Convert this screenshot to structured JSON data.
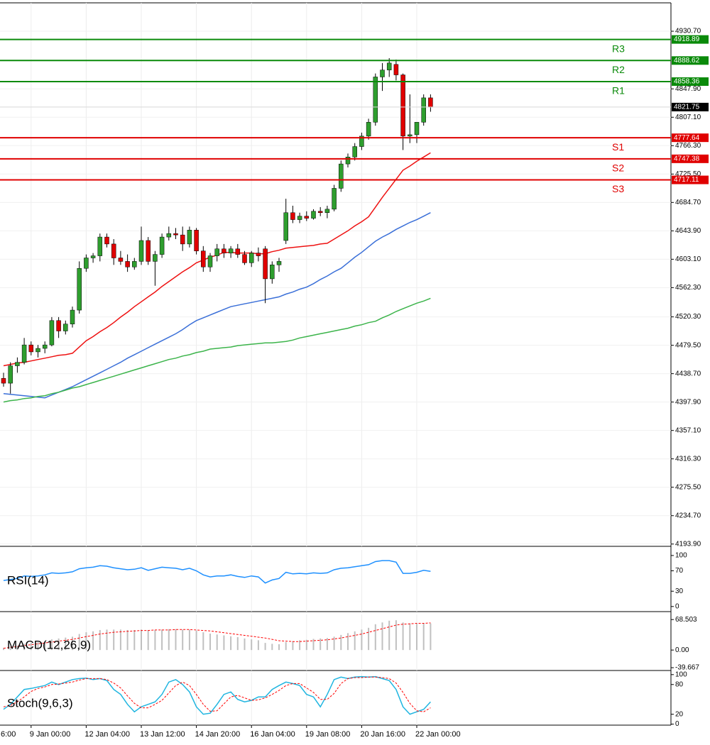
{
  "chart_data": [
    {
      "type": "candlestick",
      "categories": [
        null,
        null,
        null,
        null,
        "9 Jan 00:00",
        null,
        null,
        null,
        null,
        null,
        null,
        null,
        "12 Jan 04:00",
        null,
        null,
        null,
        null,
        null,
        null,
        null,
        "13 Jan 12:00",
        null,
        null,
        null,
        null,
        null,
        null,
        null,
        "14 Jan 20:00",
        null,
        null,
        null,
        null,
        null,
        null,
        null,
        "16 Jan 04:00",
        null,
        null,
        null,
        null,
        null,
        null,
        null,
        "19 Jan 08:00",
        null,
        null,
        null,
        null,
        null,
        null,
        null,
        "20 Jan 16:00",
        null,
        null,
        null,
        null,
        null,
        null,
        null,
        "22 Jan 00:00",
        null,
        null
      ],
      "clipped_time_label": "6:00",
      "open": [
        4432,
        4425,
        4450,
        4455,
        4480,
        4470,
        4475,
        4480,
        4515,
        4500,
        4510,
        4530,
        4590,
        4605,
        4608,
        4635,
        4625,
        4605,
        4600,
        4592,
        4600,
        4630,
        4600,
        4610,
        4635,
        4640,
        4638,
        4625,
        4645,
        4615,
        4592,
        4608,
        4618,
        4612,
        4618,
        4610,
        4598,
        4612,
        4618,
        4575,
        4595,
        4630,
        4670,
        4660,
        4665,
        4662,
        4672,
        4670,
        4675,
        4705,
        4740,
        4750,
        4765,
        4780,
        4800,
        4865,
        4875,
        4883,
        4868,
        4780,
        4782,
        4800,
        4835
      ],
      "high": [
        4440,
        4455,
        4462,
        4490,
        4485,
        4480,
        4485,
        4520,
        4520,
        4515,
        4535,
        4600,
        4610,
        4612,
        4640,
        4640,
        4632,
        4615,
        4610,
        4605,
        4650,
        4635,
        4615,
        4640,
        4650,
        4648,
        4650,
        4650,
        4648,
        4622,
        4612,
        4625,
        4625,
        4622,
        4625,
        4615,
        4615,
        4620,
        4622,
        4600,
        4605,
        4690,
        4680,
        4670,
        4672,
        4675,
        4678,
        4680,
        4710,
        4745,
        4755,
        4770,
        4785,
        4805,
        4870,
        4885,
        4892,
        4890,
        4870,
        4840,
        4800,
        4840,
        4840
      ],
      "low": [
        4420,
        4410,
        4440,
        4452,
        4465,
        4462,
        4468,
        4478,
        4490,
        4495,
        4505,
        4525,
        4585,
        4598,
        4600,
        4620,
        4595,
        4595,
        4585,
        4588,
        4595,
        4595,
        4565,
        4605,
        4630,
        4632,
        4615,
        4620,
        4610,
        4585,
        4585,
        4600,
        4605,
        4605,
        4605,
        4595,
        4592,
        4600,
        4540,
        4568,
        4585,
        4625,
        4655,
        4655,
        4658,
        4660,
        4665,
        4662,
        4672,
        4700,
        4735,
        4745,
        4760,
        4775,
        4795,
        4845,
        4865,
        4860,
        4760,
        4770,
        4770,
        4795,
        4815
      ],
      "close": [
        4425,
        4450,
        4455,
        4480,
        4470,
        4475,
        4480,
        4515,
        4500,
        4510,
        4530,
        4590,
        4605,
        4608,
        4635,
        4625,
        4605,
        4600,
        4592,
        4600,
        4630,
        4600,
        4610,
        4635,
        4640,
        4638,
        4625,
        4645,
        4615,
        4592,
        4608,
        4618,
        4612,
        4618,
        4610,
        4598,
        4612,
        4608,
        4575,
        4595,
        4600,
        4670,
        4660,
        4665,
        4662,
        4672,
        4670,
        4675,
        4705,
        4740,
        4750,
        4765,
        4780,
        4800,
        4865,
        4875,
        4885,
        4868,
        4780,
        4782,
        4800,
        4835,
        4821.75
      ],
      "up_color": "#2e9e2e",
      "down_color": "#e00000",
      "series": [
        {
          "color": "#ee1111",
          "values": [
            4450,
            4452,
            4454,
            4455,
            4457,
            4459,
            4461,
            4463,
            4465,
            4466,
            4468,
            4477,
            4486,
            4492,
            4499,
            4505,
            4512,
            4520,
            4527,
            4535,
            4542,
            4549,
            4556,
            4564,
            4571,
            4578,
            4585,
            4591,
            4598,
            4602,
            4606,
            4609,
            4613,
            4613,
            4612,
            4612,
            4612,
            4611,
            4611,
            4614,
            4616,
            4619,
            4620,
            4621,
            4622,
            4623,
            4625,
            4626,
            4632,
            4638,
            4644,
            4651,
            4657,
            4664,
            4678,
            4692,
            4705,
            4718,
            4731,
            4737,
            4744,
            4750,
            4756
          ]
        },
        {
          "color": "#3a6fd8",
          "values": [
            4410,
            4409,
            4408,
            4407,
            4406,
            4405,
            4404,
            4408,
            4412,
            4416,
            4420,
            4425,
            4430,
            4435,
            4440,
            4445,
            4450,
            4455,
            4461,
            4466,
            4471,
            4476,
            4481,
            4486,
            4491,
            4496,
            4502,
            4509,
            4515,
            4519,
            4523,
            4527,
            4531,
            4535,
            4537,
            4539,
            4541,
            4543,
            4545,
            4547,
            4549,
            4553,
            4556,
            4560,
            4563,
            4568,
            4574,
            4579,
            4585,
            4590,
            4598,
            4606,
            4613,
            4621,
            4629,
            4635,
            4640,
            4646,
            4651,
            4656,
            4660,
            4665,
            4670
          ]
        },
        {
          "color": "#3cb44b",
          "values": [
            4398,
            4400,
            4401,
            4403,
            4404,
            4406,
            4407,
            4410,
            4412,
            4415,
            4418,
            4420,
            4423,
            4426,
            4429,
            4432,
            4435,
            4438,
            4441,
            4444,
            4447,
            4450,
            4453,
            4456,
            4459,
            4461,
            4464,
            4466,
            4469,
            4471,
            4474,
            4475,
            4476,
            4477,
            4479,
            4480,
            4481,
            4482,
            4483,
            4483,
            4484,
            4485,
            4487,
            4490,
            4492,
            4494,
            4496,
            4498,
            4500,
            4502,
            4504,
            4507,
            4509,
            4512,
            4514,
            4519,
            4523,
            4528,
            4532,
            4536,
            4540,
            4543,
            4547
          ]
        }
      ],
      "levels": [
        {
          "name": "R3",
          "value": 4918.89,
          "color": "#0a8a0a"
        },
        {
          "name": "R2",
          "value": 4888.62,
          "color": "#0a8a0a"
        },
        {
          "name": "R1",
          "value": 4858.36,
          "color": "#0a8a0a"
        },
        {
          "name": "S1",
          "value": 4777.64,
          "color": "#e00000"
        },
        {
          "name": "S2",
          "value": 4747.38,
          "color": "#e00000"
        },
        {
          "name": "S3",
          "value": 4717.11,
          "color": "#e00000"
        }
      ],
      "last_price": 4821.75,
      "ylim": [
        4190.6,
        4971.5
      ],
      "yticks": [
        {
          "value": 4930.7,
          "label": "4930.70"
        },
        {
          "value": 4847.9,
          "label": "4847.90"
        },
        {
          "value": 4807.1,
          "label": "4807.10"
        },
        {
          "value": 4766.3,
          "label": "4766.30"
        },
        {
          "value": 4725.5,
          "label": "4725.50"
        },
        {
          "value": 4684.7,
          "label": "4684.70"
        },
        {
          "value": 4643.9,
          "label": "4643.90"
        },
        {
          "value": 4603.1,
          "label": "4603.10"
        },
        {
          "value": 4562.3,
          "label": "4562.30"
        },
        {
          "value": 4520.3,
          "label": "4520.30"
        },
        {
          "value": 4479.5,
          "label": "4479.50"
        },
        {
          "value": 4438.7,
          "label": "4438.70"
        },
        {
          "value": 4397.9,
          "label": "4397.90"
        },
        {
          "value": 4357.1,
          "label": "4357.10"
        },
        {
          "value": 4316.3,
          "label": "4316.30"
        },
        {
          "value": 4275.5,
          "label": "4275.50"
        },
        {
          "value": 4234.7,
          "label": "4234.70"
        },
        {
          "value": 4193.9,
          "label": "4193.90"
        }
      ],
      "grid": true
    },
    {
      "type": "line",
      "title": "RSI(14)",
      "series": [
        {
          "color": "#1e90ff",
          "values": [
            51,
            53,
            55,
            60,
            59,
            60,
            62,
            66,
            65,
            66,
            68,
            74,
            76,
            77,
            80,
            79,
            76,
            74,
            72,
            73,
            76,
            71,
            74,
            77,
            76,
            75,
            72,
            75,
            70,
            62,
            58,
            60,
            60,
            62,
            59,
            57,
            60,
            58,
            46,
            52,
            55,
            67,
            64,
            65,
            64,
            66,
            65,
            66,
            72,
            75,
            76,
            78,
            80,
            82,
            88,
            90,
            90,
            87,
            65,
            65,
            67,
            71,
            69
          ]
        }
      ],
      "ylim": [
        -10,
        111
      ],
      "yticks": [
        100,
        70,
        30,
        0
      ]
    },
    {
      "type": "bar",
      "title": "MACD(12,26,9)",
      "color": "#c0c0c0",
      "values": [
        5,
        8,
        10,
        14,
        16,
        18,
        20,
        24,
        26,
        28,
        30,
        36,
        40,
        42,
        45,
        46,
        46,
        46,
        45,
        45,
        46,
        45,
        45,
        46,
        47,
        47,
        46,
        46,
        44,
        40,
        37,
        35,
        33,
        31,
        29,
        26,
        24,
        22,
        16,
        14,
        13,
        18,
        20,
        22,
        23,
        25,
        26,
        27,
        30,
        34,
        38,
        42,
        46,
        50,
        58,
        62,
        66,
        67,
        62,
        60,
        59,
        60,
        60
      ],
      "signal": {
        "color": "#ff0000",
        "dash": true,
        "values": [
          4,
          6,
          8,
          10,
          12,
          14,
          16,
          18,
          20,
          22,
          24,
          27,
          30,
          33,
          36,
          38,
          40,
          41,
          42,
          43,
          44,
          44,
          45,
          45,
          45,
          46,
          46,
          46,
          45,
          44,
          43,
          41,
          39,
          37,
          35,
          33,
          31,
          29,
          27,
          24,
          21,
          20,
          19,
          19,
          20,
          21,
          22,
          23,
          25,
          27,
          30,
          33,
          36,
          40,
          44,
          48,
          52,
          56,
          58,
          59,
          60,
          60,
          61
        ]
      },
      "ylim": [
        -46,
        80
      ],
      "yticks": [
        68.503,
        {
          "value": 0,
          "label": "0.00"
        },
        -39.667
      ]
    },
    {
      "type": "line",
      "title": "Stoch(9,6,3)",
      "series": [
        {
          "color": "#1fb5e0",
          "values": [
            30,
            40,
            55,
            70,
            72,
            75,
            78,
            85,
            80,
            85,
            90,
            92,
            93,
            90,
            92,
            88,
            70,
            60,
            40,
            25,
            35,
            40,
            45,
            60,
            85,
            90,
            80,
            65,
            35,
            20,
            22,
            40,
            60,
            65,
            50,
            45,
            48,
            55,
            55,
            70,
            78,
            85,
            82,
            78,
            60,
            55,
            35,
            60,
            90,
            95,
            92,
            95,
            96,
            95,
            96,
            92,
            88,
            70,
            35,
            20,
            25,
            30,
            45
          ]
        },
        {
          "color": "#ff0000",
          "dash": true,
          "values": [
            35,
            38,
            45,
            55,
            66,
            72,
            75,
            80,
            81,
            83,
            85,
            89,
            92,
            92,
            92,
            90,
            83,
            73,
            57,
            42,
            33,
            33,
            40,
            48,
            63,
            78,
            85,
            78,
            60,
            40,
            26,
            27,
            41,
            55,
            58,
            53,
            48,
            49,
            53,
            60,
            68,
            78,
            82,
            82,
            73,
            64,
            50,
            50,
            62,
            82,
            92,
            94,
            94,
            95,
            95,
            94,
            92,
            83,
            64,
            42,
            27,
            25,
            33
          ]
        }
      ],
      "ylim": [
        -2,
        104
      ],
      "yticks": [
        100,
        80,
        20,
        0
      ]
    }
  ]
}
